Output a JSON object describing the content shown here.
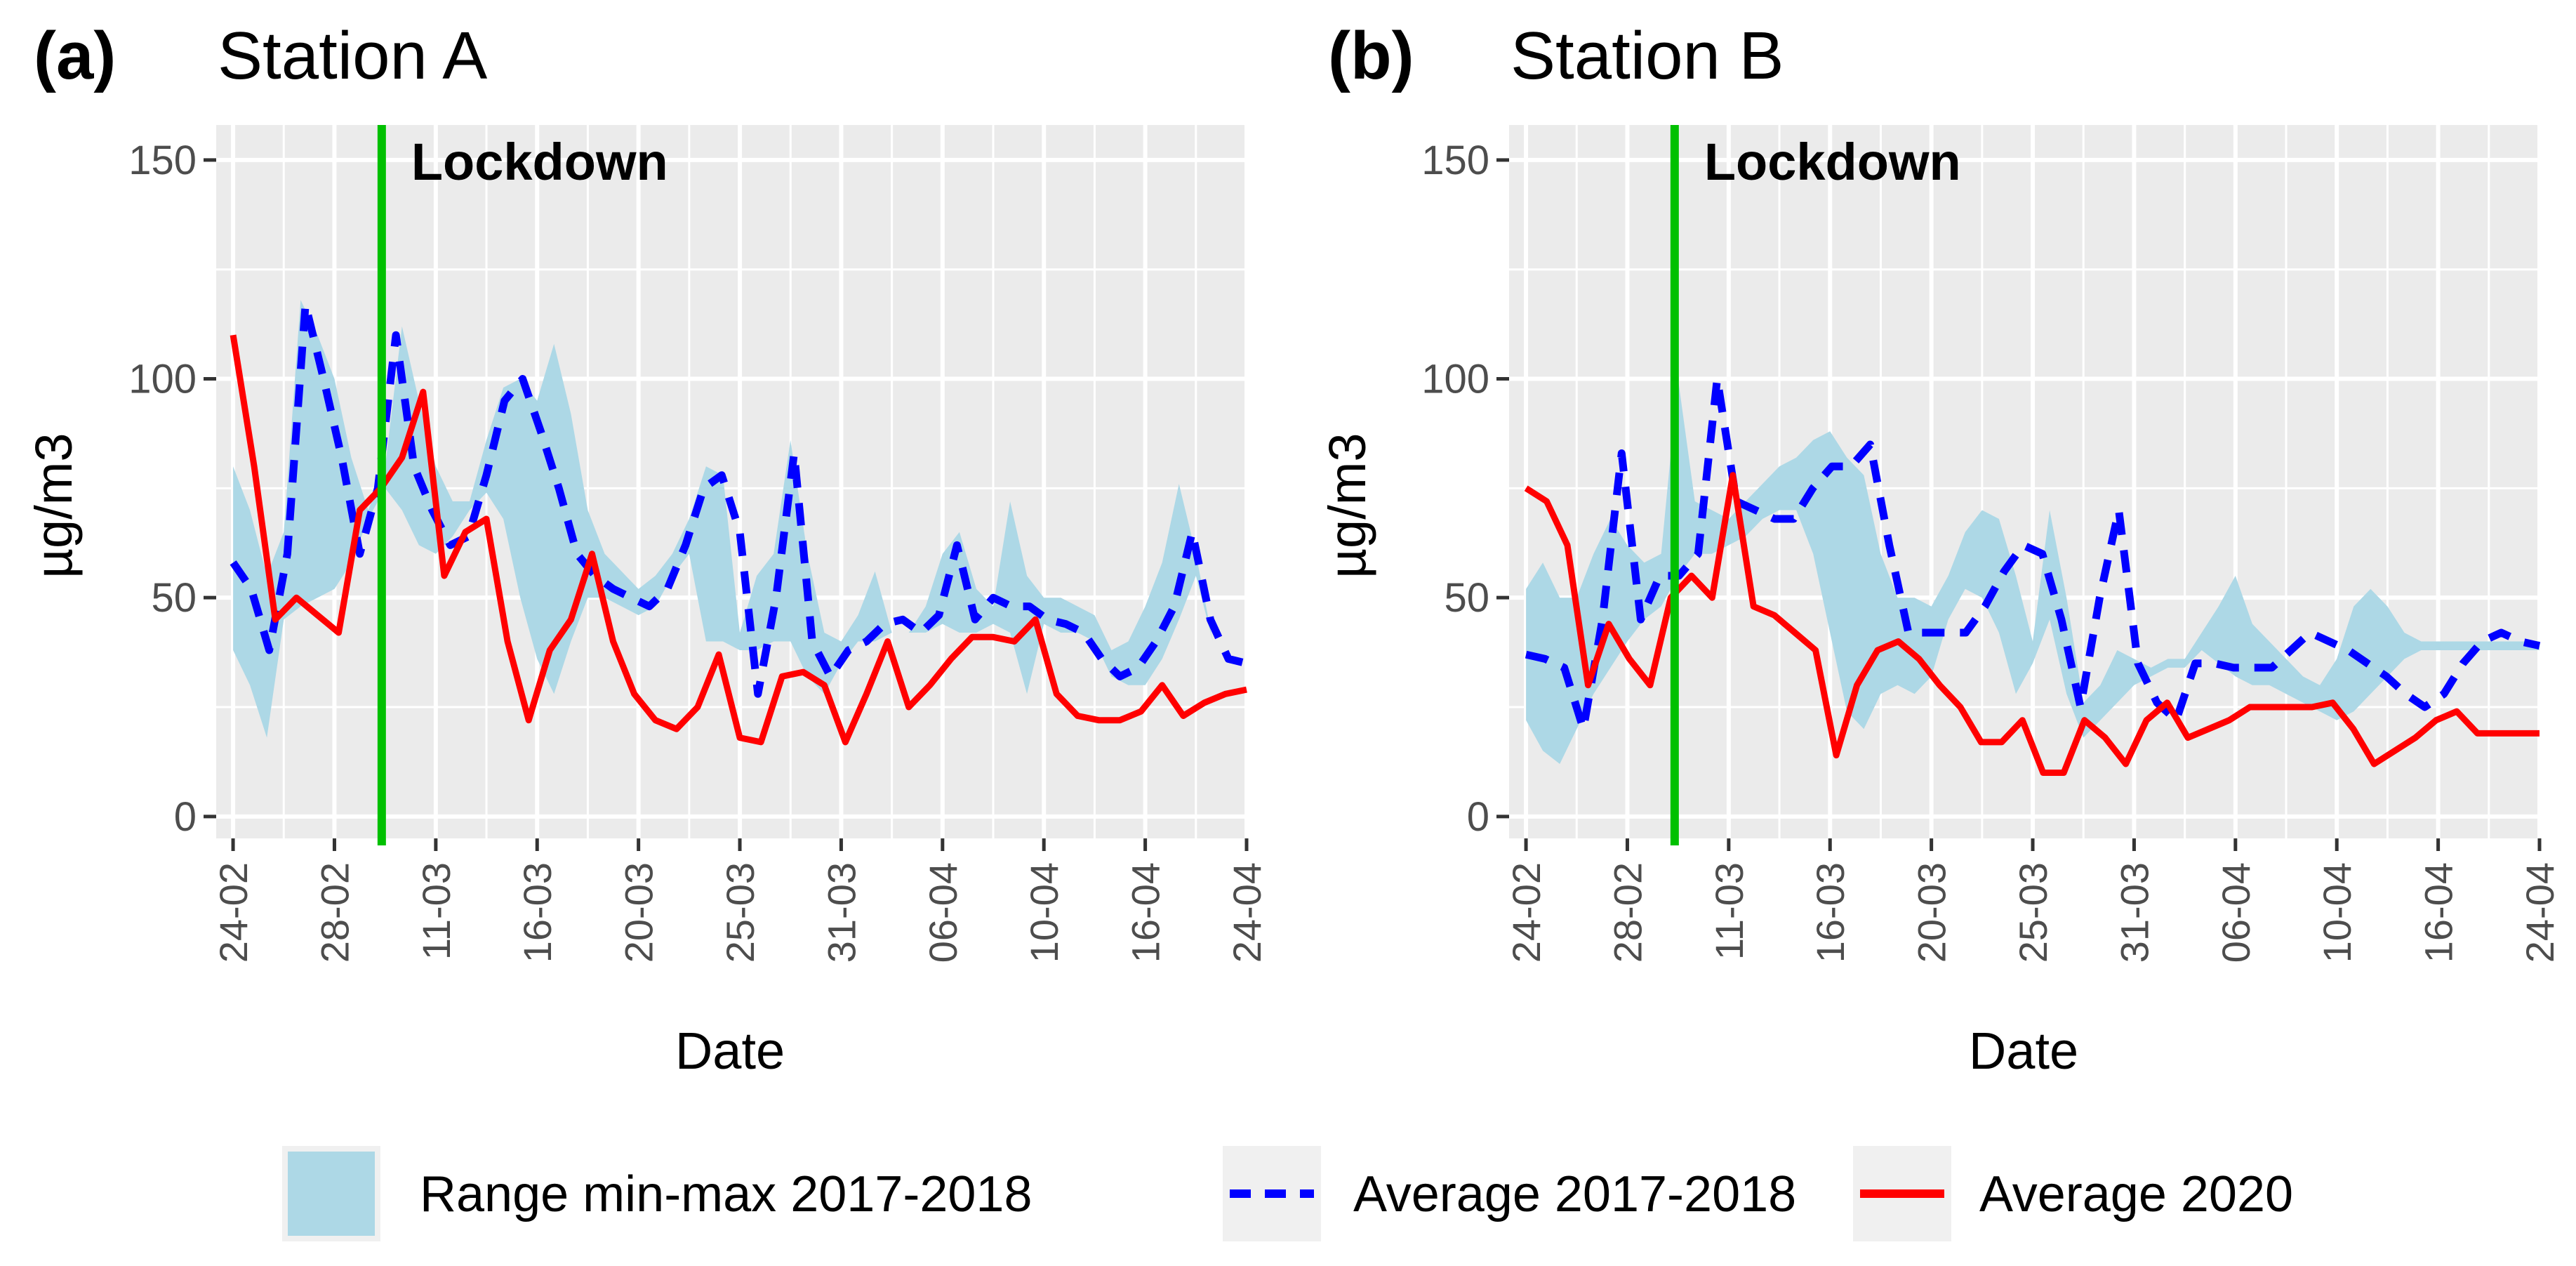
{
  "chart_data": [
    {
      "type": "line",
      "panel_tag": "(a)",
      "title": "Station A",
      "xlabel": "Date",
      "ylabel": "µg/m3",
      "ylim": [
        -5,
        158
      ],
      "yticks": [
        0,
        50,
        100,
        150
      ],
      "x_range": [
        -1,
        60
      ],
      "x_ticks": [
        "24-02",
        "28-02",
        "11-03",
        "16-03",
        "20-03",
        "25-03",
        "31-03",
        "06-04",
        "10-04",
        "16-04",
        "24-04"
      ],
      "x_tick_positions": [
        0,
        6,
        12,
        18,
        24,
        30,
        36,
        42,
        48,
        54,
        60
      ],
      "event": {
        "label": "Lockdown",
        "x": 8.8,
        "color": "#00c000"
      },
      "range_min": [
        38,
        30,
        18,
        45,
        48,
        50,
        52,
        58,
        68,
        75,
        70,
        62,
        60,
        64,
        70,
        74,
        68,
        50,
        36,
        28,
        40,
        50,
        50,
        48,
        46,
        48,
        55,
        60,
        40,
        40,
        38,
        38,
        40,
        40,
        32,
        28,
        35,
        40,
        40,
        42,
        42,
        42,
        44,
        42,
        42,
        44,
        42,
        28,
        44,
        42,
        42,
        40,
        32,
        30,
        30,
        36,
        45,
        55,
        40,
        36,
        34
      ],
      "range_max": [
        80,
        70,
        55,
        65,
        118,
        110,
        100,
        82,
        70,
        80,
        112,
        95,
        80,
        72,
        72,
        86,
        98,
        100,
        95,
        108,
        92,
        70,
        60,
        56,
        52,
        55,
        60,
        68,
        80,
        78,
        42,
        55,
        60,
        86,
        60,
        42,
        40,
        46,
        56,
        42,
        42,
        48,
        60,
        65,
        52,
        48,
        72,
        55,
        50,
        50,
        48,
        46,
        38,
        40,
        48,
        58,
        76,
        60,
        40,
        36,
        34
      ],
      "series": [
        {
          "name": "Average 2017-2018",
          "color": "#0000ff",
          "dash": true,
          "values": [
            58,
            52,
            38,
            60,
            117,
            100,
            82,
            60,
            75,
            110,
            80,
            70,
            62,
            64,
            78,
            95,
            100,
            88,
            75,
            60,
            55,
            52,
            50,
            48,
            52,
            62,
            75,
            78,
            65,
            28,
            50,
            83,
            40,
            32,
            38,
            40,
            44,
            45,
            42,
            46,
            62,
            45,
            50,
            48,
            48,
            45,
            44,
            42,
            36,
            32,
            34,
            40,
            48,
            65,
            45,
            36,
            35
          ]
        },
        {
          "name": "Average 2020",
          "color": "#ff0000",
          "dash": false,
          "values": [
            110,
            80,
            45,
            50,
            46,
            42,
            70,
            75,
            82,
            97,
            55,
            65,
            68,
            40,
            22,
            38,
            45,
            60,
            40,
            28,
            22,
            20,
            25,
            37,
            18,
            17,
            32,
            33,
            30,
            17,
            28,
            40,
            25,
            30,
            36,
            41,
            41,
            40,
            45,
            28,
            23,
            22,
            22,
            24,
            30,
            23,
            26,
            28,
            29
          ]
        }
      ]
    },
    {
      "type": "line",
      "panel_tag": "(b)",
      "title": "Station B",
      "xlabel": "Date",
      "ylabel": "µg/m3",
      "ylim": [
        -5,
        158
      ],
      "yticks": [
        0,
        50,
        100,
        150
      ],
      "x_range": [
        -1,
        60
      ],
      "x_ticks": [
        "24-02",
        "28-02",
        "11-03",
        "16-03",
        "20-03",
        "25-03",
        "31-03",
        "06-04",
        "10-04",
        "16-04",
        "24-04"
      ],
      "x_tick_positions": [
        0,
        6,
        12,
        18,
        24,
        30,
        36,
        42,
        48,
        54,
        60
      ],
      "event": {
        "label": "Lockdown",
        "x": 8.8,
        "color": "#00c000"
      },
      "range_min": [
        22,
        15,
        12,
        20,
        28,
        34,
        40,
        45,
        48,
        55,
        60,
        60,
        62,
        64,
        68,
        70,
        70,
        60,
        42,
        24,
        20,
        28,
        30,
        28,
        32,
        45,
        52,
        50,
        42,
        28,
        35,
        45,
        28,
        18,
        22,
        26,
        30,
        32,
        34,
        34,
        38,
        35,
        32,
        30,
        30,
        28,
        26,
        24,
        22,
        24,
        28,
        32,
        36,
        38,
        38,
        38,
        38,
        38,
        38,
        38,
        38
      ],
      "range_max": [
        52,
        58,
        50,
        50,
        60,
        68,
        62,
        58,
        60,
        100,
        72,
        70,
        68,
        72,
        76,
        80,
        82,
        86,
        88,
        82,
        78,
        60,
        50,
        50,
        48,
        55,
        65,
        70,
        68,
        55,
        40,
        70,
        50,
        26,
        30,
        38,
        36,
        34,
        36,
        36,
        42,
        48,
        55,
        44,
        40,
        36,
        32,
        30,
        36,
        48,
        52,
        48,
        42,
        40,
        40,
        40,
        40,
        40,
        40,
        40,
        40
      ],
      "series": [
        {
          "name": "Average 2017-2018",
          "color": "#0000ff",
          "dash": true,
          "values": [
            37,
            36,
            34,
            20,
            45,
            83,
            45,
            55,
            55,
            60,
            100,
            72,
            70,
            68,
            68,
            75,
            80,
            80,
            85,
            62,
            42,
            42,
            42,
            42,
            48,
            56,
            62,
            60,
            45,
            25,
            50,
            70,
            35,
            26,
            22,
            35,
            35,
            34,
            34,
            34,
            38,
            42,
            40,
            38,
            35,
            32,
            28,
            25,
            28,
            35,
            40,
            42,
            40,
            39
          ]
        },
        {
          "name": "Average 2020",
          "color": "#ff0000",
          "dash": false,
          "values": [
            75,
            72,
            62,
            30,
            44,
            36,
            30,
            50,
            55,
            50,
            78,
            48,
            46,
            42,
            38,
            14,
            30,
            38,
            40,
            36,
            30,
            25,
            17,
            17,
            22,
            10,
            10,
            22,
            18,
            12,
            22,
            26,
            18,
            20,
            22,
            25,
            25,
            25,
            25,
            26,
            20,
            12,
            15,
            18,
            22,
            24,
            19,
            19,
            19,
            19
          ]
        }
      ]
    }
  ],
  "legend": {
    "items": [
      {
        "label": "Range min-max 2017-2018",
        "kind": "band",
        "color": "#add8e6"
      },
      {
        "label": "Average 2017-2018",
        "kind": "dash",
        "color": "#0000ff"
      },
      {
        "label": "Average 2020",
        "kind": "line",
        "color": "#ff0000"
      }
    ]
  }
}
